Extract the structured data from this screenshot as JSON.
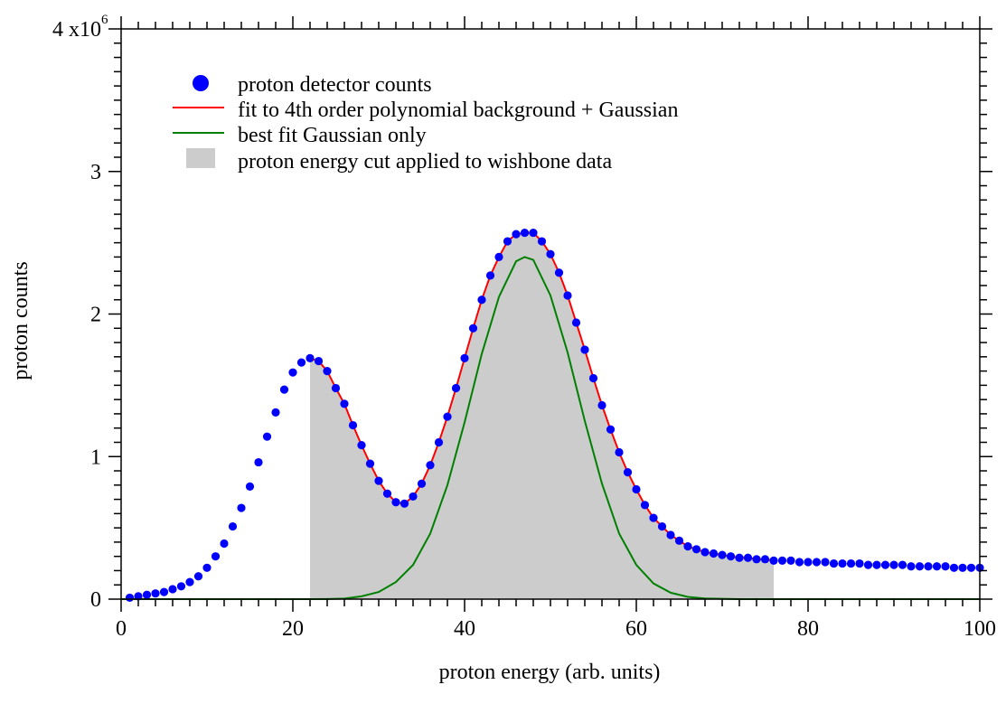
{
  "chart_data": {
    "type": "scatter",
    "xlabel": "proton energy (arb. units)",
    "ylabel": "proton counts",
    "xlim": [
      0,
      100
    ],
    "ylim": [
      0,
      4000000
    ],
    "x_ticks": [
      0,
      20,
      40,
      60,
      80,
      100
    ],
    "x_tick_labels": [
      "0",
      "20",
      "40",
      "60",
      "80",
      "100"
    ],
    "y_ticks": [
      0,
      1000000,
      2000000,
      3000000,
      4000000
    ],
    "y_tick_labels": [
      "0",
      "1",
      "2",
      "3",
      "4 x10"
    ],
    "y_tick_exponent": "6",
    "grid": false,
    "legend_position": "top-left",
    "series": [
      {
        "name": "proton detector counts",
        "kind": "points",
        "color": "#0000ff",
        "x": [
          1,
          2,
          3,
          4,
          5,
          6,
          7,
          8,
          9,
          10,
          11,
          12,
          13,
          14,
          15,
          16,
          17,
          18,
          19,
          20,
          21,
          22,
          23,
          24,
          25,
          26,
          27,
          28,
          29,
          30,
          31,
          32,
          33,
          34,
          35,
          36,
          37,
          38,
          39,
          40,
          41,
          42,
          43,
          44,
          45,
          46,
          47,
          48,
          49,
          50,
          51,
          52,
          53,
          54,
          55,
          56,
          57,
          58,
          59,
          60,
          61,
          62,
          63,
          64,
          65,
          66,
          67,
          68,
          69,
          70,
          71,
          72,
          73,
          74,
          75,
          76,
          77,
          78,
          79,
          80,
          81,
          82,
          83,
          84,
          85,
          86,
          87,
          88,
          89,
          90,
          91,
          92,
          93,
          94,
          95,
          96,
          97,
          98,
          99,
          100
        ],
        "y": [
          0.01,
          0.02,
          0.03,
          0.04,
          0.05,
          0.07,
          0.09,
          0.12,
          0.16,
          0.22,
          0.3,
          0.39,
          0.51,
          0.64,
          0.79,
          0.96,
          1.14,
          1.31,
          1.47,
          1.59,
          1.66,
          1.69,
          1.67,
          1.6,
          1.48,
          1.37,
          1.22,
          1.08,
          0.95,
          0.83,
          0.74,
          0.68,
          0.67,
          0.72,
          0.81,
          0.94,
          1.1,
          1.28,
          1.48,
          1.69,
          1.9,
          2.1,
          2.27,
          2.4,
          2.51,
          2.56,
          2.57,
          2.57,
          2.51,
          2.42,
          2.29,
          2.13,
          1.94,
          1.75,
          1.55,
          1.36,
          1.19,
          1.03,
          0.89,
          0.77,
          0.66,
          0.57,
          0.51,
          0.45,
          0.41,
          0.37,
          0.35,
          0.33,
          0.32,
          0.31,
          0.3,
          0.29,
          0.29,
          0.28,
          0.28,
          0.27,
          0.27,
          0.27,
          0.26,
          0.26,
          0.26,
          0.26,
          0.25,
          0.25,
          0.25,
          0.25,
          0.24,
          0.24,
          0.24,
          0.24,
          0.24,
          0.23,
          0.23,
          0.23,
          0.23,
          0.23,
          0.22,
          0.22,
          0.22,
          0.22
        ],
        "y_scale": 1000000
      },
      {
        "name": "fit to 4th order polynomial background + Gaussian",
        "kind": "line",
        "color": "#ff0000",
        "x": [
          22,
          23,
          24,
          25,
          26,
          27,
          28,
          29,
          30,
          31,
          32,
          33,
          34,
          35,
          36,
          37,
          38,
          39,
          40,
          41,
          42,
          43,
          44,
          45,
          46,
          47,
          48,
          49,
          50,
          51,
          52,
          53,
          54,
          55,
          56,
          57,
          58,
          59,
          60,
          61,
          62,
          63,
          64,
          65,
          66,
          67,
          68,
          69,
          70,
          71,
          72,
          73,
          74,
          75,
          76
        ],
        "y": [
          1.69,
          1.67,
          1.6,
          1.48,
          1.37,
          1.22,
          1.08,
          0.95,
          0.83,
          0.74,
          0.68,
          0.67,
          0.72,
          0.81,
          0.94,
          1.1,
          1.28,
          1.48,
          1.69,
          1.9,
          2.1,
          2.27,
          2.4,
          2.51,
          2.56,
          2.57,
          2.57,
          2.51,
          2.42,
          2.29,
          2.13,
          1.94,
          1.75,
          1.55,
          1.36,
          1.19,
          1.03,
          0.89,
          0.77,
          0.66,
          0.57,
          0.51,
          0.45,
          0.41,
          0.37,
          0.35,
          0.33,
          0.32,
          0.31,
          0.3,
          0.29,
          0.29,
          0.28,
          0.28,
          0.27
        ],
        "y_scale": 1000000
      },
      {
        "name": "best fit Gaussian only",
        "kind": "line",
        "color": "#008000",
        "x": [
          0,
          20,
          22,
          24,
          26,
          28,
          30,
          32,
          34,
          36,
          38,
          40,
          42,
          44,
          46,
          47,
          48,
          50,
          52,
          54,
          56,
          58,
          60,
          62,
          64,
          66,
          68,
          70,
          72,
          74,
          76,
          80,
          100
        ],
        "y": [
          0,
          0,
          0,
          0.001,
          0.004,
          0.02,
          0.05,
          0.12,
          0.24,
          0.46,
          0.8,
          1.24,
          1.72,
          2.12,
          2.37,
          2.4,
          2.38,
          2.13,
          1.73,
          1.25,
          0.81,
          0.46,
          0.24,
          0.11,
          0.045,
          0.016,
          0.005,
          0.002,
          0,
          0,
          0,
          0,
          0
        ],
        "y_scale": 1000000
      },
      {
        "name": "proton energy cut applied to wishbone data",
        "kind": "band",
        "color": "#cccccc",
        "x_range": [
          22,
          76
        ]
      }
    ]
  }
}
